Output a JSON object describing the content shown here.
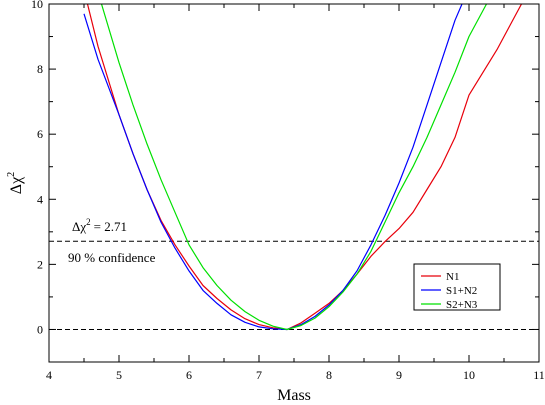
{
  "chart_data": {
    "type": "line",
    "title": "",
    "xlabel": "Mass",
    "ylabel_base": "Δχ",
    "ylabel_sup": "2",
    "xlim": [
      4,
      11
    ],
    "ylim": [
      -1,
      10
    ],
    "xticks": [
      4,
      5,
      6,
      7,
      8,
      9,
      10,
      11
    ],
    "yticks": [
      0,
      2,
      4,
      6,
      8,
      10
    ],
    "grid": false,
    "legend_position": "right",
    "reference_lines": [
      {
        "y": 2.71,
        "style": "dashed"
      },
      {
        "y": 0,
        "style": "dashed"
      }
    ],
    "annotations": {
      "threshold_base": "Δχ",
      "threshold_sup": "2",
      "threshold_value": "= 2.71",
      "confidence": "90 % confidence"
    },
    "series": [
      {
        "name": "N1",
        "color": "#e8000b",
        "x": [
          4.55,
          4.7,
          5.0,
          5.2,
          5.4,
          5.6,
          5.8,
          6.0,
          6.2,
          6.4,
          6.6,
          6.8,
          7.0,
          7.2,
          7.4,
          7.6,
          7.8,
          8.0,
          8.2,
          8.4,
          8.6,
          8.8,
          9.0,
          9.2,
          9.4,
          9.6,
          9.8,
          10.0,
          10.2,
          10.4,
          10.6,
          10.75
        ],
        "y": [
          10.0,
          8.7,
          6.6,
          5.4,
          4.3,
          3.35,
          2.6,
          1.95,
          1.35,
          0.95,
          0.6,
          0.33,
          0.15,
          0.05,
          0.0,
          0.2,
          0.5,
          0.8,
          1.2,
          1.7,
          2.25,
          2.7,
          3.1,
          3.6,
          4.3,
          5.0,
          5.9,
          7.2,
          7.9,
          8.6,
          9.4,
          10.0
        ]
      },
      {
        "name": "S1+N2",
        "color": "#0000ff",
        "x": [
          4.5,
          4.7,
          5.0,
          5.2,
          5.4,
          5.6,
          5.8,
          6.0,
          6.2,
          6.4,
          6.6,
          6.8,
          7.0,
          7.2,
          7.4,
          7.6,
          7.8,
          8.0,
          8.2,
          8.4,
          8.6,
          8.8,
          9.0,
          9.2,
          9.4,
          9.6,
          9.8,
          9.9
        ],
        "y": [
          9.7,
          8.3,
          6.6,
          5.4,
          4.3,
          3.3,
          2.5,
          1.8,
          1.2,
          0.8,
          0.45,
          0.22,
          0.08,
          0.02,
          0.0,
          0.15,
          0.4,
          0.75,
          1.2,
          1.8,
          2.6,
          3.5,
          4.5,
          5.6,
          6.9,
          8.2,
          9.5,
          10.0
        ]
      },
      {
        "name": "S2+N3",
        "color": "#00e000",
        "x": [
          4.75,
          5.0,
          5.2,
          5.4,
          5.6,
          5.8,
          6.0,
          6.2,
          6.4,
          6.6,
          6.8,
          7.0,
          7.2,
          7.4,
          7.6,
          7.8,
          8.0,
          8.2,
          8.4,
          8.6,
          8.8,
          9.0,
          9.2,
          9.4,
          9.6,
          9.8,
          10.0,
          10.2,
          10.25
        ],
        "y": [
          10.0,
          8.2,
          6.9,
          5.7,
          4.6,
          3.6,
          2.6,
          1.9,
          1.35,
          0.9,
          0.55,
          0.28,
          0.1,
          0.0,
          0.12,
          0.35,
          0.7,
          1.15,
          1.7,
          2.4,
          3.3,
          4.2,
          5.0,
          5.9,
          6.9,
          7.9,
          9.0,
          9.8,
          10.0
        ]
      }
    ]
  }
}
